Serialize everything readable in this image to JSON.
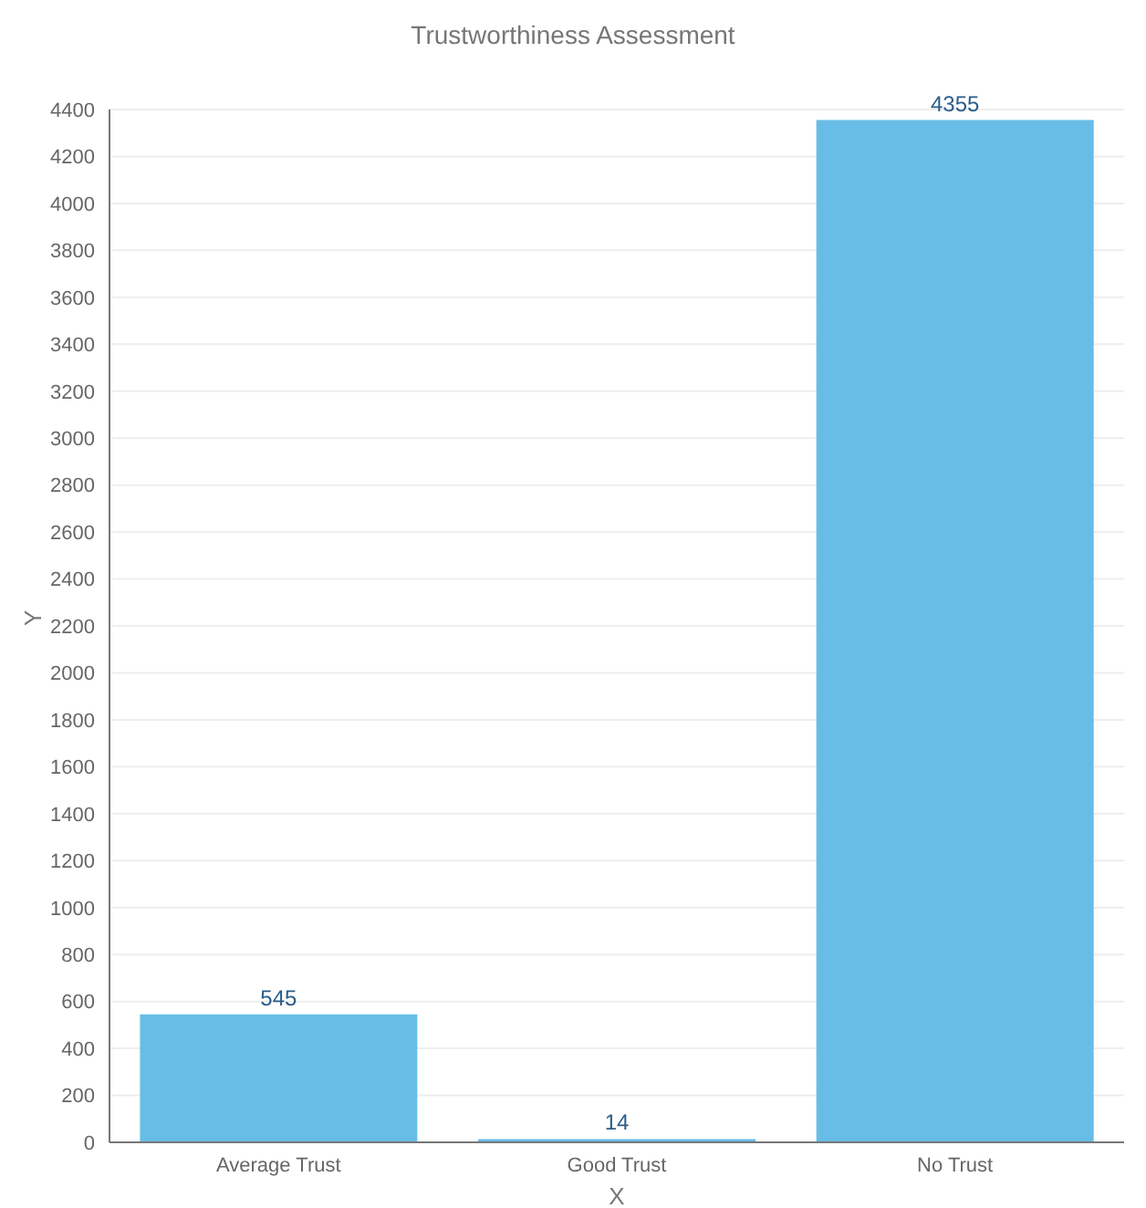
{
  "chart_data": {
    "type": "bar",
    "title": "Trustworthiness Assessment",
    "xlabel": "X",
    "ylabel": "Y",
    "categories": [
      "Average Trust",
      "Good Trust",
      "No Trust"
    ],
    "values": [
      545,
      14,
      4355
    ],
    "color": "#68bde6",
    "ylim": [
      0,
      4400
    ],
    "yticks": [
      0,
      200,
      400,
      600,
      800,
      1000,
      1200,
      1400,
      1600,
      1800,
      2000,
      2200,
      2400,
      2600,
      2800,
      3000,
      3200,
      3400,
      3600,
      3800,
      4000,
      4200,
      4400
    ],
    "grid": "y",
    "data_labels": true
  }
}
